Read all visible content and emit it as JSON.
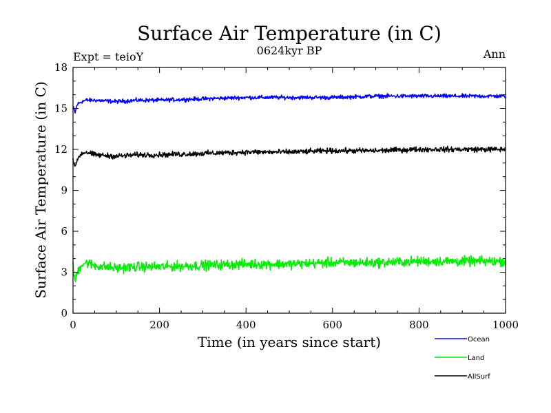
{
  "chart_data": {
    "type": "line",
    "title": "Surface Air Temperature (in C)",
    "subtitle": "0624kyr BP",
    "experiment_label": "Expt = teioY",
    "season_label": "Ann",
    "xlabel": "Time (in years since start)",
    "ylabel": "Surface Air Temperature (in C)",
    "xlim": [
      0,
      1000
    ],
    "ylim": [
      0,
      18
    ],
    "xticks": [
      0,
      200,
      400,
      600,
      800,
      1000
    ],
    "yticks": [
      0,
      3,
      6,
      9,
      12,
      15,
      18
    ],
    "grid": false,
    "legend_position": "bottom-right, below plot",
    "series": [
      {
        "name": "Ocean",
        "color": "#0000ff",
        "x": [
          0,
          5,
          10,
          20,
          30,
          50,
          100,
          150,
          200,
          300,
          400,
          500,
          600,
          700,
          800,
          900,
          1000
        ],
        "values": [
          15.1,
          14.7,
          15.3,
          15.5,
          15.6,
          15.6,
          15.5,
          15.6,
          15.6,
          15.7,
          15.8,
          15.8,
          15.8,
          15.9,
          15.9,
          15.9,
          15.9
        ]
      },
      {
        "name": "Land",
        "color": "#00ee00",
        "x": [
          0,
          5,
          10,
          20,
          30,
          50,
          100,
          150,
          200,
          300,
          400,
          500,
          600,
          700,
          800,
          900,
          1000
        ],
        "values": [
          3.4,
          2.3,
          3.0,
          3.6,
          3.7,
          3.5,
          3.3,
          3.4,
          3.4,
          3.5,
          3.6,
          3.6,
          3.7,
          3.7,
          3.8,
          3.8,
          3.8
        ]
      },
      {
        "name": "AllSurf",
        "color": "#000000",
        "x": [
          0,
          5,
          10,
          20,
          30,
          50,
          100,
          150,
          200,
          300,
          400,
          500,
          600,
          700,
          800,
          900,
          1000
        ],
        "values": [
          11.3,
          10.6,
          11.3,
          11.7,
          11.8,
          11.6,
          11.5,
          11.6,
          11.6,
          11.7,
          11.8,
          11.8,
          11.9,
          11.9,
          12.0,
          12.0,
          12.0
        ]
      }
    ]
  }
}
